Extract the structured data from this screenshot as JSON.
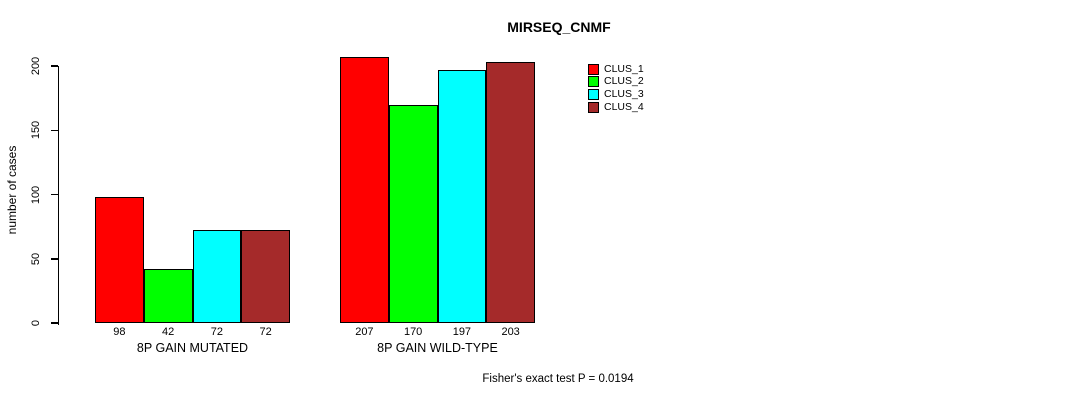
{
  "chart_data": {
    "type": "bar",
    "title": "MIRSEQ_CNMF",
    "ylabel": "number of cases",
    "xlabel": "",
    "groups": [
      "8P GAIN MUTATED",
      "8P GAIN WILD-TYPE"
    ],
    "series": [
      {
        "name": "CLUS_1",
        "color": "#FF0000",
        "values": [
          98,
          207
        ]
      },
      {
        "name": "CLUS_2",
        "color": "#00FF00",
        "values": [
          42,
          170
        ]
      },
      {
        "name": "CLUS_3",
        "color": "#00FFFF",
        "values": [
          72,
          197
        ]
      },
      {
        "name": "CLUS_4",
        "color": "#A52A2A",
        "values": [
          72,
          203
        ]
      }
    ],
    "yticks": [
      0,
      50,
      100,
      150,
      200
    ],
    "ylim": [
      0,
      215
    ],
    "grid": false,
    "bar_value_labels_shown": true,
    "legend_position": "top-right",
    "annotation": "Fisher's exact test P = 0.0194"
  },
  "colors": {
    "background": "#FFFFFF",
    "axis": "#000000",
    "text": "#000000",
    "bar_border": "#000000"
  }
}
